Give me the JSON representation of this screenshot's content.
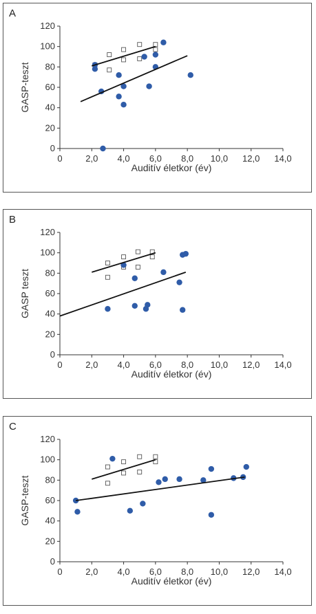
{
  "colors": {
    "filled": "#2f5ca8",
    "open_stroke": "#555555",
    "line": "#111111",
    "axis": "#333333"
  },
  "chart_data": [
    {
      "type": "scatter",
      "panel_label": "A",
      "xlabel": "Auditív életkor (év)",
      "ylabel": "GASP-teszt",
      "xlim": [
        0,
        14
      ],
      "ylim": [
        0,
        120
      ],
      "x_ticks": [
        "0",
        "2,0",
        "4,0",
        "6,0",
        "8,0",
        "10,0",
        "12,0",
        "14,0"
      ],
      "y_ticks": [
        "0",
        "20",
        "40",
        "60",
        "80",
        "100",
        "120"
      ],
      "series": [
        {
          "marker": "open-square",
          "points": [
            [
              2.2,
              82
            ],
            [
              3.1,
              92
            ],
            [
              3.1,
              77
            ],
            [
              4.0,
              97
            ],
            [
              4.0,
              87
            ],
            [
              5.0,
              102
            ],
            [
              5.0,
              88
            ],
            [
              6.0,
              102
            ],
            [
              6.0,
              97
            ]
          ],
          "trend": [
            [
              2.0,
              81
            ],
            [
              6.0,
              100
            ]
          ]
        },
        {
          "marker": "filled-circle",
          "points": [
            [
              2.2,
              82
            ],
            [
              2.2,
              78
            ],
            [
              2.6,
              56
            ],
            [
              2.7,
              0
            ],
            [
              3.7,
              72
            ],
            [
              3.7,
              51
            ],
            [
              4.0,
              61
            ],
            [
              4.0,
              43
            ],
            [
              5.3,
              90
            ],
            [
              5.6,
              61
            ],
            [
              6.0,
              92
            ],
            [
              6.0,
              80
            ],
            [
              6.5,
              104
            ],
            [
              8.2,
              72
            ]
          ],
          "trend": [
            [
              1.3,
              46
            ],
            [
              8.0,
              91
            ]
          ]
        }
      ]
    },
    {
      "type": "scatter",
      "panel_label": "B",
      "xlabel": "Auditív életkor (év)",
      "ylabel": "GASP teszt",
      "xlim": [
        0,
        14
      ],
      "ylim": [
        0,
        120
      ],
      "x_ticks": [
        "0",
        "2,0",
        "4,0",
        "6,0",
        "8,0",
        "10,0",
        "12,0",
        "14,0"
      ],
      "y_ticks": [
        "0",
        "20",
        "40",
        "60",
        "80",
        "100",
        "120"
      ],
      "series": [
        {
          "marker": "open-square",
          "points": [
            [
              3.0,
              90
            ],
            [
              3.0,
              76
            ],
            [
              4.0,
              96
            ],
            [
              4.0,
              86
            ],
            [
              4.9,
              101
            ],
            [
              4.9,
              86
            ],
            [
              5.8,
              101
            ],
            [
              5.8,
              96
            ]
          ],
          "trend": [
            [
              2.0,
              81
            ],
            [
              6.0,
              100
            ]
          ]
        },
        {
          "marker": "filled-circle",
          "points": [
            [
              3.0,
              45
            ],
            [
              4.0,
              88
            ],
            [
              4.7,
              75
            ],
            [
              4.7,
              48
            ],
            [
              5.4,
              45
            ],
            [
              5.5,
              49
            ],
            [
              6.5,
              81
            ],
            [
              7.5,
              71
            ],
            [
              7.7,
              98
            ],
            [
              7.9,
              99
            ],
            [
              7.7,
              44
            ]
          ],
          "trend": [
            [
              0,
              38
            ],
            [
              7.9,
              81
            ]
          ]
        }
      ]
    },
    {
      "type": "scatter",
      "panel_label": "C",
      "xlabel": "Auditív életkor (év)",
      "ylabel": "GASP-teszt",
      "xlim": [
        0,
        14
      ],
      "ylim": [
        0,
        120
      ],
      "x_ticks": [
        "0",
        "2,0",
        "4,0",
        "6,0",
        "8,0",
        "10,0",
        "12,0",
        "14,0"
      ],
      "y_ticks": [
        "0",
        "20",
        "40",
        "60",
        "80",
        "100",
        "120"
      ],
      "series": [
        {
          "marker": "open-square",
          "points": [
            [
              3.0,
              93
            ],
            [
              3.0,
              77
            ],
            [
              4.0,
              98
            ],
            [
              4.0,
              87
            ],
            [
              5.0,
              103
            ],
            [
              5.0,
              88
            ],
            [
              6.0,
              103
            ],
            [
              6.0,
              98
            ]
          ],
          "trend": [
            [
              2.0,
              81
            ],
            [
              6.0,
              100
            ]
          ]
        },
        {
          "marker": "filled-circle",
          "points": [
            [
              1.0,
              60
            ],
            [
              1.1,
              49
            ],
            [
              3.3,
              101
            ],
            [
              4.4,
              50
            ],
            [
              5.2,
              57
            ],
            [
              6.2,
              78
            ],
            [
              6.6,
              81
            ],
            [
              7.5,
              81
            ],
            [
              9.0,
              80
            ],
            [
              9.5,
              91
            ],
            [
              9.5,
              46
            ],
            [
              10.9,
              82
            ],
            [
              11.5,
              83
            ],
            [
              11.7,
              93
            ]
          ],
          "trend": [
            [
              1.0,
              60
            ],
            [
              11.6,
              83
            ]
          ]
        }
      ]
    }
  ]
}
